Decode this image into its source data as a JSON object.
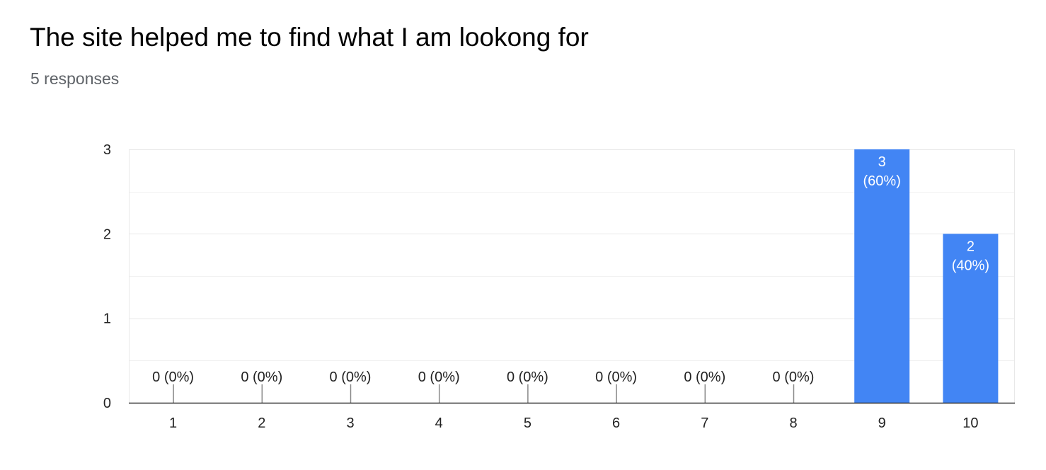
{
  "title": "The site helped me to find what I am lookong for",
  "responses": "5 responses",
  "colors": {
    "bar": "#4285f4",
    "grid": "#e8e8e8",
    "axis": "#333333",
    "label_on_bar": "#ffffff",
    "label_empty": "#222222"
  },
  "chart_data": {
    "type": "bar",
    "title": "The site helped me to find what I am lookong for",
    "subtitle": "5 responses",
    "categories": [
      "1",
      "2",
      "3",
      "4",
      "5",
      "6",
      "7",
      "8",
      "9",
      "10"
    ],
    "values": [
      0,
      0,
      0,
      0,
      0,
      0,
      0,
      0,
      3,
      2
    ],
    "labels": [
      "0 (0%)",
      "0 (0%)",
      "0 (0%)",
      "0 (0%)",
      "0 (0%)",
      "0 (0%)",
      "0 (0%)",
      "0 (0%)",
      "3\n(60%)",
      "2\n(40%)"
    ],
    "xlabel": "",
    "ylabel": "",
    "ylim": [
      0,
      3
    ],
    "yticks": [
      "0",
      "1",
      "2",
      "3"
    ],
    "grid": true,
    "legend": "none"
  }
}
